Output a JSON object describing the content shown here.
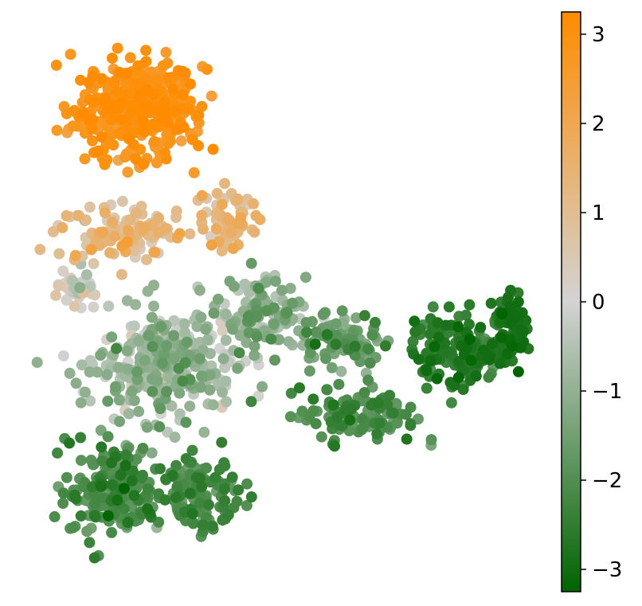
{
  "chart_data": {
    "type": "scatter",
    "title": "",
    "xlabel": "",
    "ylabel": "",
    "axes_visible": false,
    "grid": false,
    "x_range": [
      0,
      10
    ],
    "y_range": [
      0,
      10
    ],
    "colorbar": {
      "placement": "right",
      "range": [
        -3.25,
        3.25
      ],
      "ticks": [
        3,
        2,
        1,
        0,
        -1,
        -2,
        -3
      ],
      "tick_labels": [
        "3",
        "2",
        "1",
        "0",
        "−1",
        "−2",
        "−3"
      ],
      "colormap": [
        "#006400",
        "#d3d3d3",
        "#ff8c00"
      ]
    },
    "clusters": [
      {
        "cx": 2.1,
        "cy": 8.6,
        "sx": 1.05,
        "sy": 0.75,
        "n": 380,
        "vmean": 2.85,
        "vsd": 0.3
      },
      {
        "cx": 1.8,
        "cy": 6.3,
        "sx": 1.1,
        "sy": 0.45,
        "n": 120,
        "vmean": 1.0,
        "vsd": 0.6
      },
      {
        "cx": 3.9,
        "cy": 6.5,
        "sx": 0.45,
        "sy": 0.5,
        "n": 60,
        "vmean": 1.1,
        "vsd": 0.5
      },
      {
        "cx": 0.8,
        "cy": 5.3,
        "sx": 0.35,
        "sy": 0.3,
        "n": 40,
        "vmean": -0.1,
        "vsd": 0.5
      },
      {
        "cx": 2.7,
        "cy": 3.8,
        "sx": 1.15,
        "sy": 0.85,
        "n": 330,
        "vmean": -0.8,
        "vsd": 0.5
      },
      {
        "cx": 4.6,
        "cy": 4.8,
        "sx": 0.7,
        "sy": 0.55,
        "n": 120,
        "vmean": -1.1,
        "vsd": 0.55
      },
      {
        "cx": 6.2,
        "cy": 4.3,
        "sx": 0.7,
        "sy": 0.4,
        "n": 80,
        "vmean": -1.6,
        "vsd": 0.4
      },
      {
        "cx": 1.6,
        "cy": 1.5,
        "sx": 0.75,
        "sy": 0.75,
        "n": 200,
        "vmean": -2.0,
        "vsd": 0.4
      },
      {
        "cx": 3.3,
        "cy": 1.4,
        "sx": 0.65,
        "sy": 0.5,
        "n": 140,
        "vmean": -2.1,
        "vsd": 0.35
      },
      {
        "cx": 6.5,
        "cy": 2.9,
        "sx": 1.0,
        "sy": 0.45,
        "n": 110,
        "vmean": -2.1,
        "vsd": 0.35
      },
      {
        "cx": 8.5,
        "cy": 4.1,
        "sx": 0.8,
        "sy": 0.55,
        "n": 160,
        "vmean": -2.5,
        "vsd": 0.35
      },
      {
        "cx": 9.55,
        "cy": 4.6,
        "sx": 0.3,
        "sy": 0.5,
        "n": 70,
        "vmean": -2.85,
        "vsd": 0.2
      }
    ]
  }
}
